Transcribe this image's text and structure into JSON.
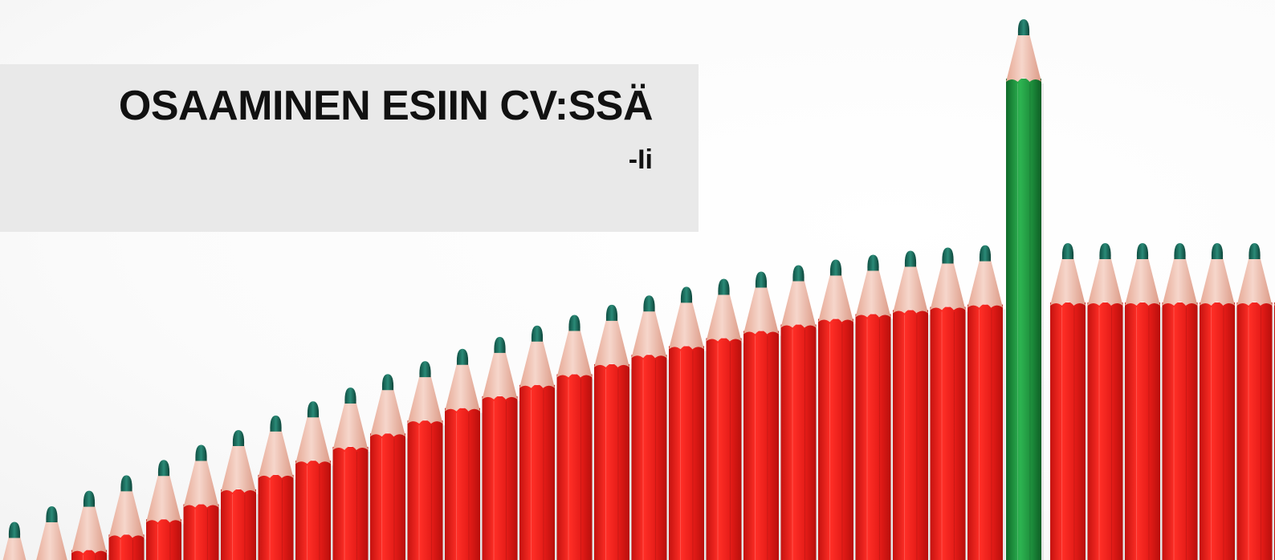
{
  "slide": {
    "title": "OSAAMINEN ESIIN CV:SSÄ",
    "subtitle": "-Ii"
  },
  "illustration": {
    "subject": "pencil-row",
    "pencil_body_color": "#e8201c",
    "pencil_highlight_color": "#ff3b30",
    "pencil_wood_color": "#f1c3b4",
    "pencil_lead_color": "#1d6b5c",
    "standout_pencil_color": "#1c8a3a",
    "standout_pencil_highlight": "#31b054"
  }
}
